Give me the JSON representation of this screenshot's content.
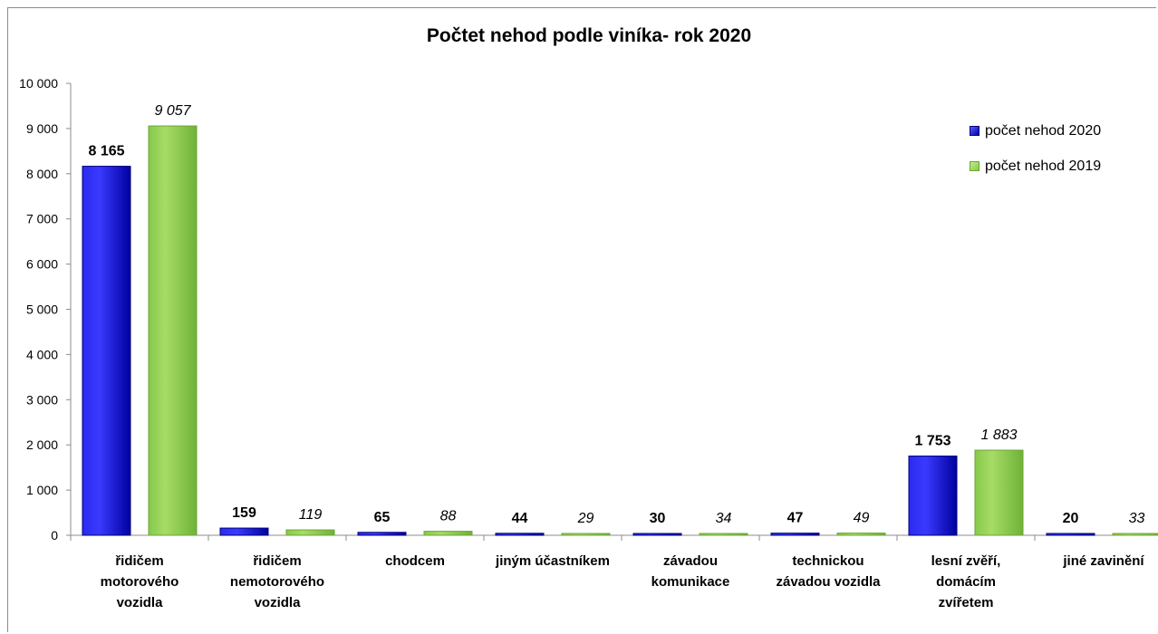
{
  "chart_data": {
    "type": "bar",
    "title": "Počtet nehod podle viníka- rok 2020",
    "categories": [
      [
        "řidičem",
        "motorového",
        "vozidla"
      ],
      [
        "řidičem",
        "nemotorového",
        "vozidla"
      ],
      [
        "chodcem"
      ],
      [
        "jiným účastníkem"
      ],
      [
        "závadou",
        "komunikace"
      ],
      [
        "technickou",
        "závadou vozidla"
      ],
      [
        "lesní zvěří,",
        "domácím",
        "zvířetem"
      ],
      [
        "jiné zavinění"
      ]
    ],
    "series": [
      {
        "name": "počet nehod 2020",
        "values": [
          8165,
          159,
          65,
          44,
          30,
          47,
          1753,
          20
        ],
        "labels": [
          "8 165",
          "159",
          "65",
          "44",
          "30",
          "47",
          "1 753",
          "20"
        ],
        "color": "#1a1ad8"
      },
      {
        "name": "počet nehod 2019",
        "values": [
          9057,
          119,
          88,
          29,
          34,
          49,
          1883,
          33
        ],
        "labels": [
          "9 057",
          "119",
          "88",
          "29",
          "34",
          "49",
          "1 883",
          "33"
        ],
        "color": "#9ad35a"
      }
    ],
    "ylim": [
      0,
      10000
    ],
    "yticks": [
      0,
      1000,
      2000,
      3000,
      4000,
      5000,
      6000,
      7000,
      8000,
      9000,
      10000
    ],
    "ytick_labels": [
      "0",
      "1 000",
      "2 000",
      "3 000",
      "4 000",
      "5 000",
      "6 000",
      "7 000",
      "8 000",
      "9 000",
      "10 000"
    ],
    "legend_position": "top-right",
    "grid": false
  }
}
